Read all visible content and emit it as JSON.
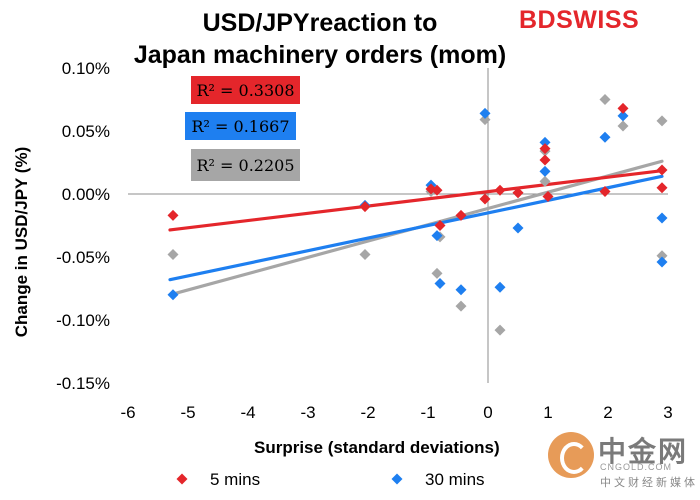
{
  "header": {
    "title_line1": "USD/JPYreaction to",
    "title_line2": "Japan machinery orders (mom)",
    "logo_bd": "BD",
    "logo_swiss": "SWISS"
  },
  "watermark": {
    "chinese": "中金网",
    "domain": "CNGOLD.COM",
    "subtitle": "中文财经新媒体"
  },
  "colors": {
    "series_5min": "#e4262b",
    "series_30min": "#1e7ff0",
    "series_grey": "#a6a6a6"
  },
  "chart_data": {
    "type": "scatter",
    "title": "USD/JPYreaction to Japan machinery orders (mom)",
    "xlabel": "Surprise (standard deviations)",
    "ylabel": "Change in USD/JPY  (%)",
    "xlim": [
      -6,
      3
    ],
    "ylim": [
      -0.15,
      0.1
    ],
    "x_ticks": [
      "-6",
      "-5",
      "-4",
      "-3",
      "-2",
      "-1",
      "0",
      "1",
      "2",
      "3"
    ],
    "y_ticks": [
      "-0.15%",
      "-0.10%",
      "-0.05%",
      "0.00%",
      "0.05%",
      "0.10%"
    ],
    "legend_position": "bottom",
    "series": [
      {
        "name": "5 mins",
        "color": "#e4262b",
        "r_squared": "R² = 0.3308",
        "trend": [
          [
            -5.3,
            -0.0285
          ],
          [
            2.9,
            0.0185
          ]
        ],
        "points": [
          [
            -5.25,
            -0.017
          ],
          [
            -2.05,
            -0.01
          ],
          [
            -0.95,
            0.004
          ],
          [
            -0.85,
            0.003
          ],
          [
            -0.8,
            -0.025
          ],
          [
            -0.45,
            -0.017
          ],
          [
            -0.05,
            -0.004
          ],
          [
            0.2,
            0.003
          ],
          [
            0.5,
            0.001
          ],
          [
            0.95,
            0.027
          ],
          [
            0.95,
            0.036
          ],
          [
            1.0,
            -0.002
          ],
          [
            1.95,
            0.002
          ],
          [
            2.25,
            0.068
          ],
          [
            2.9,
            0.019
          ],
          [
            2.9,
            0.005
          ]
        ]
      },
      {
        "name": "30 mins",
        "color": "#1e7ff0",
        "r_squared": "R² = 0.1667",
        "trend": [
          [
            -5.3,
            -0.068
          ],
          [
            2.9,
            0.014
          ]
        ],
        "points": [
          [
            -5.25,
            -0.08
          ],
          [
            -2.05,
            -0.009
          ],
          [
            -0.95,
            0.007
          ],
          [
            -0.85,
            -0.033
          ],
          [
            -0.8,
            -0.071
          ],
          [
            -0.45,
            -0.076
          ],
          [
            -0.05,
            0.064
          ],
          [
            0.2,
            -0.074
          ],
          [
            0.5,
            -0.027
          ],
          [
            0.95,
            0.041
          ],
          [
            0.95,
            0.018
          ],
          [
            1.95,
            0.045
          ],
          [
            2.25,
            0.062
          ],
          [
            2.9,
            -0.019
          ],
          [
            2.9,
            -0.054
          ]
        ]
      },
      {
        "color": "#a6a6a6",
        "r_squared": "R² = 0.2205",
        "trend": [
          [
            -5.3,
            -0.08
          ],
          [
            2.9,
            0.026
          ]
        ],
        "points": [
          [
            -5.25,
            -0.048
          ],
          [
            -2.05,
            -0.048
          ],
          [
            -0.95,
            0.002
          ],
          [
            -0.85,
            -0.063
          ],
          [
            -0.8,
            -0.034
          ],
          [
            -0.45,
            -0.089
          ],
          [
            -0.05,
            0.059
          ],
          [
            0.2,
            -0.108
          ],
          [
            0.5,
            0.001
          ],
          [
            0.95,
            0.034
          ],
          [
            0.95,
            0.01
          ],
          [
            1.95,
            0.075
          ],
          [
            2.25,
            0.054
          ],
          [
            2.9,
            0.058
          ],
          [
            2.9,
            -0.049
          ]
        ]
      }
    ]
  }
}
